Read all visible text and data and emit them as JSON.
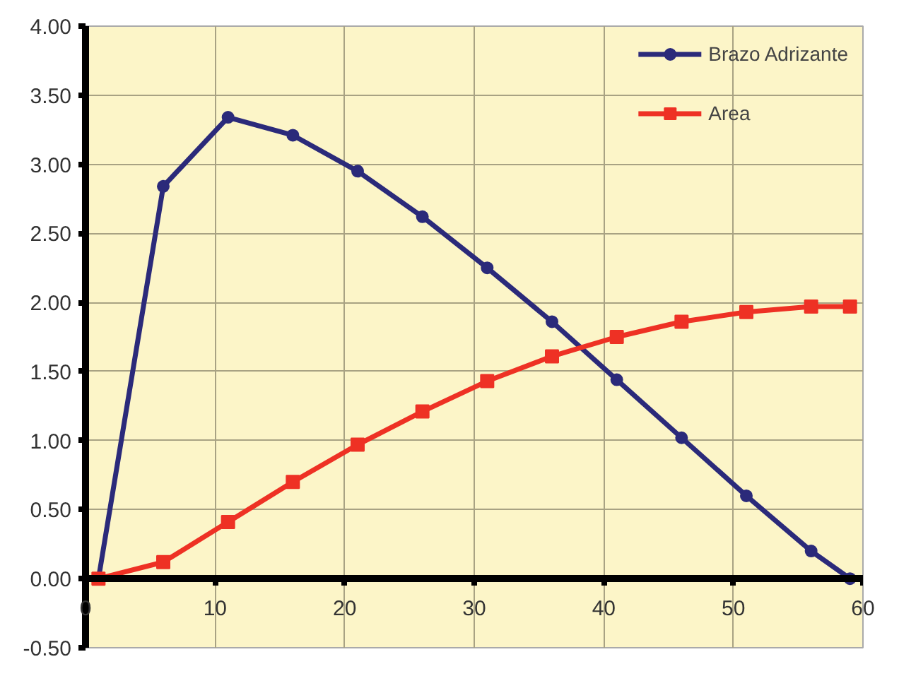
{
  "chart_data": {
    "type": "line",
    "x": [
      1,
      6,
      11,
      16,
      21,
      26,
      31,
      36,
      41,
      46,
      51,
      56,
      59
    ],
    "series": [
      {
        "name": "Brazo Adrizante",
        "color": "#2b2a7a",
        "marker": "circle",
        "values": [
          0,
          2.84,
          3.34,
          3.21,
          2.95,
          2.62,
          2.25,
          1.86,
          1.44,
          1.02,
          0.6,
          0.2,
          0.0
        ]
      },
      {
        "name": "Area",
        "color": "#ee3124",
        "marker": "square",
        "values": [
          0,
          0.12,
          0.41,
          0.7,
          0.97,
          1.21,
          1.43,
          1.61,
          1.75,
          1.86,
          1.93,
          1.97,
          1.97
        ]
      }
    ],
    "xlim": [
      0,
      60
    ],
    "xticks": [
      0,
      10,
      20,
      30,
      40,
      50,
      60
    ],
    "ylim": [
      -0.5,
      4.0
    ],
    "yticks": [
      {
        "value": -0.5,
        "label": "-0.50"
      },
      {
        "value": 0,
        "label": "0.00"
      },
      {
        "value": 0.5,
        "label": "0.50"
      },
      {
        "value": 1,
        "label": "1.00"
      },
      {
        "value": 1.5,
        "label": "1.50"
      },
      {
        "value": 2,
        "label": "2.00"
      },
      {
        "value": 2.5,
        "label": "2.50"
      },
      {
        "value": 3,
        "label": "3.00"
      },
      {
        "value": 3.5,
        "label": "3.50"
      },
      {
        "value": 4,
        "label": "4.00"
      }
    ],
    "grid": true,
    "legend": "top right",
    "line_style": "solid"
  }
}
